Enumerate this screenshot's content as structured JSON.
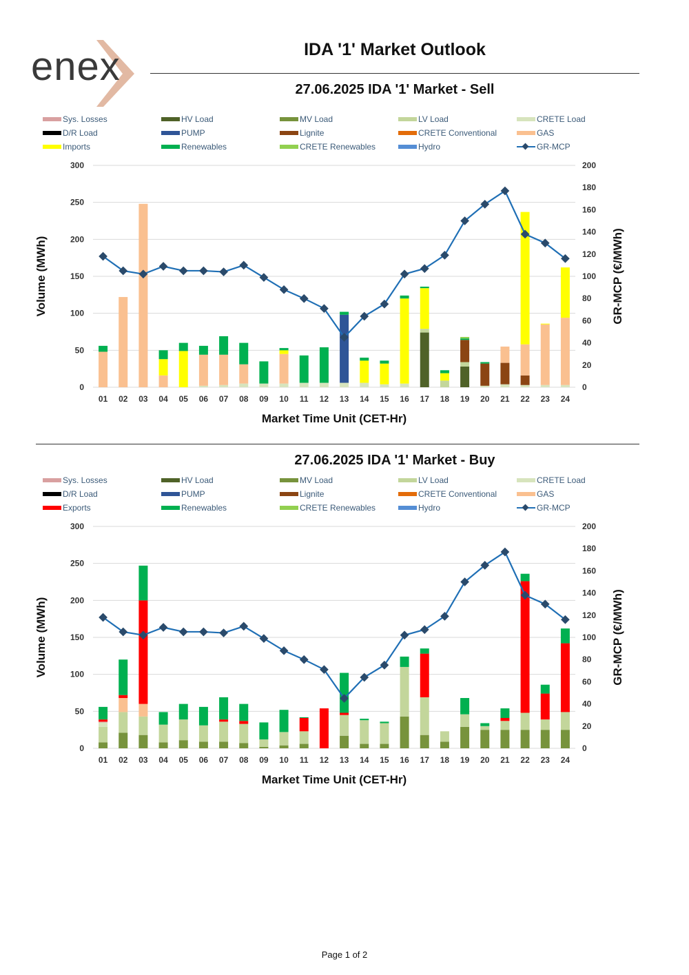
{
  "brand": "enex",
  "header": {
    "title": "IDA '1' Market Outlook"
  },
  "footer": {
    "page": "Page 1 of 2"
  },
  "chart_data": [
    {
      "type": "bar",
      "title": "27.06.2025  IDA '1' Market - Sell",
      "xlabel": "Market Time Unit (CET-Hr)",
      "ylabel": "Volume (MWh)",
      "y2label": "GR-MCP (€/MWh)",
      "ylim": [
        0,
        300
      ],
      "y2lim": [
        0,
        200
      ],
      "yticks": [
        "300",
        "250",
        "200",
        "150",
        "100",
        "50",
        "0"
      ],
      "y2ticks": [
        "200",
        "180",
        "160",
        "140",
        "120",
        "100",
        "80",
        "60",
        "40",
        "20",
        "0"
      ],
      "categories": [
        "01",
        "02",
        "03",
        "04",
        "05",
        "06",
        "07",
        "08",
        "09",
        "10",
        "11",
        "12",
        "13",
        "14",
        "15",
        "16",
        "17",
        "18",
        "19",
        "20",
        "21",
        "22",
        "23",
        "24"
      ],
      "legend": [
        {
          "name": "Sys. Losses",
          "color": "#d9a0a0",
          "kind": "bar"
        },
        {
          "name": "HV Load",
          "color": "#4f6228",
          "kind": "bar"
        },
        {
          "name": "MV Load",
          "color": "#77933c",
          "kind": "bar"
        },
        {
          "name": "LV Load",
          "color": "#c3d69b",
          "kind": "bar"
        },
        {
          "name": "CRETE Load",
          "color": "#d7e4bd",
          "kind": "bar"
        },
        {
          "name": "D/R Load",
          "color": "#000000",
          "kind": "bar"
        },
        {
          "name": "PUMP",
          "color": "#2f5597",
          "kind": "bar"
        },
        {
          "name": "Lignite",
          "color": "#8b4513",
          "kind": "bar"
        },
        {
          "name": "CRETE Conventional",
          "color": "#e36c0a",
          "kind": "bar"
        },
        {
          "name": "GAS",
          "color": "#fac090",
          "kind": "bar"
        },
        {
          "name": "Imports",
          "color": "#ffff00",
          "kind": "bar"
        },
        {
          "name": "Renewables",
          "color": "#00b050",
          "kind": "bar"
        },
        {
          "name": "CRETE Renewables",
          "color": "#92d050",
          "kind": "bar"
        },
        {
          "name": "Hydro",
          "color": "#558ed5",
          "kind": "bar"
        },
        {
          "name": "GR-MCP",
          "color": "#1f6fb5",
          "kind": "line"
        }
      ],
      "series": [
        {
          "name": "HV Load",
          "color": "#4f6228",
          "values": [
            0,
            0,
            0,
            0,
            0,
            0,
            0,
            0,
            0,
            0,
            0,
            0,
            0,
            0,
            0,
            0,
            74,
            0,
            28,
            0,
            0,
            0,
            0,
            0
          ]
        },
        {
          "name": "MV Load",
          "color": "#77933c",
          "values": [
            0,
            0,
            0,
            0,
            0,
            0,
            0,
            0,
            0,
            0,
            0,
            0,
            0,
            0,
            0,
            0,
            0,
            0,
            0,
            0,
            0,
            0,
            0,
            0
          ]
        },
        {
          "name": "LV Load",
          "color": "#c3d69b",
          "values": [
            0,
            0,
            0,
            0,
            0,
            0,
            0,
            0,
            0,
            0,
            0,
            0,
            0,
            0,
            0,
            0,
            5,
            9,
            6,
            0,
            0,
            0,
            0,
            0
          ]
        },
        {
          "name": "CRETE Load",
          "color": "#d7e4bd",
          "values": [
            0,
            0,
            0,
            0,
            0,
            2,
            3,
            5,
            5,
            5,
            6,
            6,
            6,
            6,
            4,
            5,
            0,
            0,
            0,
            2,
            4,
            3,
            3,
            3
          ]
        },
        {
          "name": "PUMP",
          "color": "#2f5597",
          "values": [
            0,
            0,
            0,
            0,
            0,
            0,
            0,
            0,
            0,
            0,
            0,
            0,
            92,
            0,
            0,
            0,
            0,
            0,
            0,
            0,
            0,
            0,
            0,
            0
          ]
        },
        {
          "name": "Lignite",
          "color": "#8b4513",
          "values": [
            0,
            0,
            0,
            0,
            0,
            0,
            0,
            0,
            0,
            0,
            0,
            0,
            0,
            0,
            0,
            0,
            0,
            0,
            30,
            30,
            29,
            13,
            0,
            0
          ]
        },
        {
          "name": "GAS",
          "color": "#fac090",
          "values": [
            48,
            122,
            248,
            16,
            0,
            42,
            41,
            26,
            0,
            40,
            0,
            0,
            0,
            0,
            0,
            0,
            0,
            0,
            0,
            0,
            22,
            42,
            82,
            91
          ]
        },
        {
          "name": "Imports",
          "color": "#ffff00",
          "values": [
            0,
            0,
            0,
            22,
            49,
            0,
            0,
            0,
            0,
            5,
            0,
            0,
            0,
            30,
            28,
            115,
            55,
            10,
            0,
            0,
            0,
            179,
            1,
            68
          ]
        },
        {
          "name": "Renewables",
          "color": "#00b050",
          "values": [
            8,
            0,
            0,
            12,
            11,
            12,
            25,
            29,
            30,
            3,
            37,
            48,
            4,
            4,
            4,
            4,
            2,
            4,
            2,
            2,
            0,
            0,
            0,
            0
          ]
        },
        {
          "name": "CRETE Renewables",
          "color": "#92d050",
          "values": [
            0,
            0,
            0,
            0,
            0,
            0,
            0,
            0,
            0,
            0,
            0,
            0,
            0,
            0,
            0,
            0,
            0,
            0,
            2,
            0,
            0,
            0,
            0,
            0
          ]
        }
      ],
      "line": {
        "name": "GR-MCP",
        "axis": "right",
        "values": [
          118,
          105,
          102,
          109,
          105,
          105,
          104,
          110,
          99,
          88,
          80,
          71,
          45,
          64,
          75,
          102,
          107,
          119,
          150,
          165,
          177,
          138,
          130,
          116
        ]
      }
    },
    {
      "type": "bar",
      "title": "27.06.2025  IDA '1' Market - Buy",
      "xlabel": "Market Time Unit (CET-Hr)",
      "ylabel": "Volume (MWh)",
      "y2label": "GR-MCP (€/MWh)",
      "ylim": [
        0,
        300
      ],
      "y2lim": [
        0,
        200
      ],
      "yticks": [
        "300",
        "250",
        "200",
        "150",
        "100",
        "50",
        "0"
      ],
      "y2ticks": [
        "200",
        "180",
        "160",
        "140",
        "120",
        "100",
        "80",
        "60",
        "40",
        "20",
        "0"
      ],
      "categories": [
        "01",
        "02",
        "03",
        "04",
        "05",
        "06",
        "07",
        "08",
        "09",
        "10",
        "11",
        "12",
        "13",
        "14",
        "15",
        "16",
        "17",
        "18",
        "19",
        "20",
        "21",
        "22",
        "23",
        "24"
      ],
      "legend": [
        {
          "name": "Sys. Losses",
          "color": "#d9a0a0",
          "kind": "bar"
        },
        {
          "name": "HV Load",
          "color": "#4f6228",
          "kind": "bar"
        },
        {
          "name": "MV Load",
          "color": "#77933c",
          "kind": "bar"
        },
        {
          "name": "LV Load",
          "color": "#c3d69b",
          "kind": "bar"
        },
        {
          "name": "CRETE Load",
          "color": "#d7e4bd",
          "kind": "bar"
        },
        {
          "name": "D/R Load",
          "color": "#000000",
          "kind": "bar"
        },
        {
          "name": "PUMP",
          "color": "#2f5597",
          "kind": "bar"
        },
        {
          "name": "Lignite",
          "color": "#8b4513",
          "kind": "bar"
        },
        {
          "name": "CRETE Conventional",
          "color": "#e36c0a",
          "kind": "bar"
        },
        {
          "name": "GAS",
          "color": "#fac090",
          "kind": "bar"
        },
        {
          "name": "Exports",
          "color": "#ff0000",
          "kind": "bar"
        },
        {
          "name": "Renewables",
          "color": "#00b050",
          "kind": "bar"
        },
        {
          "name": "CRETE Renewables",
          "color": "#92d050",
          "kind": "bar"
        },
        {
          "name": "Hydro",
          "color": "#558ed5",
          "kind": "bar"
        },
        {
          "name": "GR-MCP",
          "color": "#1f6fb5",
          "kind": "line"
        }
      ],
      "series": [
        {
          "name": "MV Load",
          "color": "#77933c",
          "values": [
            8,
            21,
            18,
            8,
            11,
            9,
            9,
            7,
            2,
            4,
            6,
            0,
            17,
            6,
            6,
            43,
            18,
            9,
            29,
            25,
            25,
            25,
            25,
            25
          ]
        },
        {
          "name": "LV Load",
          "color": "#c3d69b",
          "values": [
            21,
            28,
            25,
            24,
            28,
            22,
            27,
            26,
            10,
            18,
            17,
            0,
            28,
            32,
            28,
            67,
            51,
            14,
            17,
            5,
            12,
            23,
            14,
            24
          ]
        },
        {
          "name": "CRETE Load",
          "color": "#d7e4bd",
          "values": [
            6,
            0,
            0,
            0,
            0,
            0,
            0,
            0,
            0,
            0,
            0,
            0,
            0,
            0,
            0,
            0,
            0,
            0,
            0,
            0,
            0,
            0,
            0,
            0
          ]
        },
        {
          "name": "Sys. Losses",
          "color": "#d9a0a0",
          "values": [
            1,
            0,
            0,
            0,
            0,
            0,
            0,
            0,
            0,
            0,
            0,
            0,
            0,
            0,
            0,
            0,
            0,
            0,
            0,
            0,
            0,
            0,
            0,
            0
          ]
        },
        {
          "name": "GAS",
          "color": "#fac090",
          "values": [
            0,
            19,
            17,
            0,
            0,
            0,
            0,
            0,
            0,
            0,
            0,
            0,
            0,
            0,
            0,
            0,
            0,
            0,
            0,
            0,
            0,
            0,
            0,
            0
          ]
        },
        {
          "name": "Exports",
          "color": "#ff0000",
          "values": [
            3,
            4,
            140,
            0,
            0,
            0,
            3,
            4,
            0,
            0,
            18,
            54,
            3,
            0,
            0,
            0,
            59,
            0,
            0,
            0,
            4,
            178,
            35,
            93
          ]
        },
        {
          "name": "Renewables",
          "color": "#00b050",
          "values": [
            17,
            48,
            47,
            17,
            21,
            25,
            30,
            23,
            23,
            30,
            1,
            0,
            54,
            2,
            2,
            14,
            7,
            0,
            22,
            4,
            13,
            10,
            12,
            20
          ]
        }
      ],
      "line": {
        "name": "GR-MCP",
        "axis": "right",
        "values": [
          118,
          105,
          102,
          109,
          105,
          105,
          104,
          110,
          99,
          88,
          80,
          71,
          45,
          64,
          75,
          102,
          107,
          119,
          150,
          165,
          177,
          138,
          130,
          116
        ]
      }
    }
  ]
}
